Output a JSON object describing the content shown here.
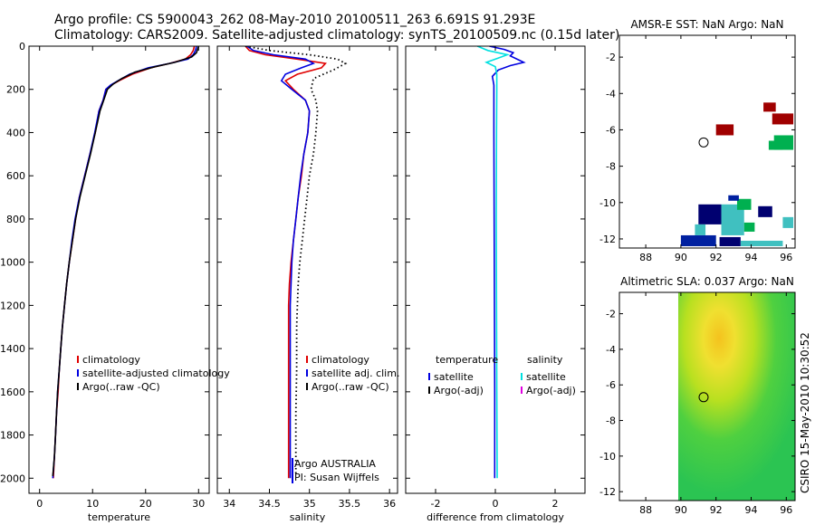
{
  "title_line1": "Argo profile: CS 5900043_262 08-May-2010 20100511_263 6.691S 91.293E",
  "title_line2": "Climatology: CARS2009. Satellite-adjusted climatology: synTS_20100509.nc (0.15d later)",
  "side_text": "CSIRO 15-May-2010 10:30:52",
  "colors": {
    "climatology": "#e00000",
    "satellite": "#0000e0",
    "argo": "#000000",
    "salinity_sat": "#00e0e0",
    "salinity_adj": "#e000e0"
  },
  "chart_data": [
    {
      "id": "temperature",
      "type": "line",
      "xlabel": "temperature",
      "xlim": [
        -2,
        32
      ],
      "xticks": [
        0,
        10,
        20,
        30
      ],
      "xtick_labels": [
        "0",
        "10",
        "20",
        "30"
      ],
      "ylim": [
        2070,
        0
      ],
      "yticks": [
        0,
        200,
        400,
        600,
        800,
        1000,
        1200,
        1400,
        1600,
        1800,
        2000
      ],
      "ytick_labels": [
        "0",
        "200",
        "400",
        "600",
        "800",
        "1000",
        "1200",
        "1400",
        "1600",
        "1800",
        "2000"
      ],
      "legend": {
        "position": "right-middle",
        "entries": [
          "climatology",
          "satellite-adjusted climatology",
          "Argo(..raw -QC)"
        ]
      },
      "series": [
        {
          "name": "climatology",
          "color": "#e00000",
          "points": [
            [
              29.2,
              0
            ],
            [
              29,
              20
            ],
            [
              28.5,
              40
            ],
            [
              27.5,
              60
            ],
            [
              24.5,
              80
            ],
            [
              21,
              100
            ],
            [
              17.5,
              130
            ],
            [
              15,
              160
            ],
            [
              13.5,
              180
            ],
            [
              12.5,
              200
            ],
            [
              12,
              250
            ],
            [
              11.2,
              300
            ],
            [
              10.5,
              400
            ],
            [
              9.5,
              500
            ],
            [
              8.5,
              600
            ],
            [
              7.5,
              700
            ],
            [
              6.8,
              800
            ],
            [
              6.2,
              900
            ],
            [
              5.6,
              1000
            ],
            [
              5.1,
              1100
            ],
            [
              4.7,
              1200
            ],
            [
              4.3,
              1300
            ],
            [
              4,
              1400
            ],
            [
              3.7,
              1500
            ],
            [
              3.5,
              1600
            ],
            [
              3.2,
              1700
            ],
            [
              3,
              1800
            ],
            [
              2.8,
              1900
            ],
            [
              2.6,
              2000
            ]
          ]
        },
        {
          "name": "satellite-adjusted climatology",
          "color": "#0000e0",
          "points": [
            [
              29.6,
              0
            ],
            [
              29.4,
              20
            ],
            [
              29,
              40
            ],
            [
              28,
              60
            ],
            [
              24.5,
              80
            ],
            [
              20.5,
              100
            ],
            [
              17,
              130
            ],
            [
              14.8,
              160
            ],
            [
              13.4,
              180
            ],
            [
              12.5,
              200
            ],
            [
              12,
              250
            ],
            [
              11.2,
              300
            ],
            [
              10.4,
              400
            ],
            [
              9.5,
              500
            ],
            [
              8.5,
              600
            ],
            [
              7.5,
              700
            ],
            [
              6.7,
              800
            ],
            [
              6.1,
              900
            ],
            [
              5.6,
              1000
            ],
            [
              5.1,
              1100
            ],
            [
              4.7,
              1200
            ],
            [
              4.3,
              1300
            ],
            [
              4,
              1400
            ],
            [
              3.7,
              1500
            ],
            [
              3.4,
              1600
            ],
            [
              3.2,
              1700
            ],
            [
              3,
              1800
            ],
            [
              2.8,
              1900
            ],
            [
              2.5,
              2000
            ]
          ]
        },
        {
          "name": "Argo(..raw -QC)",
          "color": "#000000",
          "points": [
            [
              30,
              0
            ],
            [
              29.8,
              15
            ],
            [
              29.6,
              30
            ],
            [
              28.7,
              50
            ],
            [
              25.5,
              75
            ],
            [
              21.8,
              95
            ],
            [
              18,
              120
            ],
            [
              15.5,
              150
            ],
            [
              13.9,
              175
            ],
            [
              12.8,
              200
            ],
            [
              12.1,
              250
            ],
            [
              11.4,
              300
            ],
            [
              10.5,
              400
            ],
            [
              9.6,
              500
            ],
            [
              8.6,
              600
            ],
            [
              7.6,
              700
            ],
            [
              6.8,
              800
            ],
            [
              6.2,
              900
            ],
            [
              5.6,
              1000
            ],
            [
              5.1,
              1100
            ],
            [
              4.7,
              1200
            ],
            [
              4.3,
              1300
            ],
            [
              4,
              1400
            ],
            [
              3.7,
              1500
            ],
            [
              3.4,
              1600
            ],
            [
              3.2,
              1700
            ],
            [
              3,
              1800
            ],
            [
              2.8,
              1900
            ],
            [
              2.5,
              1990
            ]
          ]
        }
      ]
    },
    {
      "id": "salinity",
      "type": "line",
      "xlabel": "salinity",
      "xlim": [
        33.85,
        36.1
      ],
      "xticks": [
        34,
        34.5,
        35,
        35.5,
        36
      ],
      "xtick_labels": [
        "34",
        "34.5",
        "35",
        "35.5",
        "36"
      ],
      "ylim": [
        2070,
        0
      ],
      "legend": {
        "position": "right-middle",
        "entries": [
          "climatology",
          "satellite adj. clim.",
          "Argo(..raw -QC)"
        ]
      },
      "annotations": [
        "Argo AUSTRALIA",
        "PI: Susan Wijffels"
      ],
      "series": [
        {
          "name": "climatology",
          "color": "#e00000",
          "points": [
            [
              34.2,
              0
            ],
            [
              34.25,
              20
            ],
            [
              34.45,
              40
            ],
            [
              34.85,
              60
            ],
            [
              35.2,
              80
            ],
            [
              35.15,
              100
            ],
            [
              34.85,
              130
            ],
            [
              34.7,
              160
            ],
            [
              34.8,
              200
            ],
            [
              34.95,
              250
            ],
            [
              35,
              300
            ],
            [
              34.98,
              400
            ],
            [
              34.93,
              500
            ],
            [
              34.9,
              600
            ],
            [
              34.86,
              700
            ],
            [
              34.83,
              800
            ],
            [
              34.8,
              900
            ],
            [
              34.77,
              1000
            ],
            [
              34.75,
              1100
            ],
            [
              34.74,
              1200
            ],
            [
              34.74,
              1300
            ],
            [
              34.74,
              1500
            ],
            [
              34.74,
              1700
            ],
            [
              34.74,
              2000
            ]
          ]
        },
        {
          "name": "satellite adj. clim.",
          "color": "#0000e0",
          "points": [
            [
              34.22,
              0
            ],
            [
              34.3,
              20
            ],
            [
              34.55,
              40
            ],
            [
              34.95,
              60
            ],
            [
              35.05,
              80
            ],
            [
              34.9,
              100
            ],
            [
              34.7,
              130
            ],
            [
              34.65,
              160
            ],
            [
              34.78,
              200
            ],
            [
              34.95,
              250
            ],
            [
              35,
              300
            ],
            [
              34.98,
              400
            ],
            [
              34.93,
              500
            ],
            [
              34.89,
              600
            ],
            [
              34.86,
              700
            ],
            [
              34.83,
              800
            ],
            [
              34.8,
              900
            ],
            [
              34.78,
              1000
            ],
            [
              34.77,
              1100
            ],
            [
              34.76,
              1200
            ],
            [
              34.76,
              1300
            ],
            [
              34.76,
              1500
            ],
            [
              34.76,
              1700
            ],
            [
              34.76,
              2000
            ]
          ]
        },
        {
          "name": "Argo(..raw -QC)",
          "color": "#000000",
          "dashed": true,
          "points": [
            [
              34.2,
              0
            ],
            [
              34.5,
              20
            ],
            [
              35,
              40
            ],
            [
              35.35,
              60
            ],
            [
              35.45,
              80
            ],
            [
              35.3,
              110
            ],
            [
              35.05,
              150
            ],
            [
              35.02,
              200
            ],
            [
              35.08,
              250
            ],
            [
              35.1,
              300
            ],
            [
              35.08,
              400
            ],
            [
              35.05,
              500
            ],
            [
              35.0,
              600
            ],
            [
              34.97,
              700
            ],
            [
              34.94,
              800
            ],
            [
              34.91,
              900
            ],
            [
              34.88,
              1000
            ],
            [
              34.86,
              1100
            ],
            [
              34.85,
              1200
            ],
            [
              34.84,
              1300
            ],
            [
              34.84,
              1500
            ],
            [
              34.83,
              1700
            ],
            [
              34.83,
              1990
            ]
          ]
        }
      ]
    },
    {
      "id": "difference",
      "type": "line",
      "xlabel": "difference from climatology",
      "xlim": [
        -3,
        3
      ],
      "xticks": [
        -2,
        0,
        2
      ],
      "xtick_labels": [
        "-2",
        "0",
        "2"
      ],
      "ylim": [
        2070,
        0
      ],
      "legend": {
        "position": "right-middle",
        "headers": [
          "temperature",
          "salinity"
        ],
        "entries": [
          "satellite",
          "Argo(-adj)",
          "satellite",
          "Argo(-adj)"
        ]
      },
      "series": [
        {
          "name": "temperature satellite",
          "color": "#0000e0",
          "points": [
            [
              -0.2,
              0
            ],
            [
              0.3,
              15
            ],
            [
              0.6,
              30
            ],
            [
              0.5,
              45
            ],
            [
              0.95,
              75
            ],
            [
              0.5,
              90
            ],
            [
              0.1,
              110
            ],
            [
              -0.1,
              140
            ],
            [
              -0.05,
              180
            ],
            [
              -0.05,
              250
            ],
            [
              -0.05,
              400
            ],
            [
              -0.04,
              800
            ],
            [
              -0.03,
              1200
            ],
            [
              -0.02,
              1600
            ],
            [
              -0.02,
              2000
            ]
          ]
        },
        {
          "name": "salinity satellite",
          "color": "#00e0e0",
          "points": [
            [
              -0.6,
              0
            ],
            [
              -0.25,
              20
            ],
            [
              0.4,
              40
            ],
            [
              0.1,
              55
            ],
            [
              -0.3,
              75
            ],
            [
              0,
              95
            ],
            [
              0.05,
              130
            ],
            [
              0.05,
              200
            ],
            [
              0.04,
              400
            ],
            [
              0.03,
              800
            ],
            [
              0.04,
              1200
            ],
            [
              0.05,
              1600
            ],
            [
              0.06,
              2000
            ]
          ]
        }
      ]
    },
    {
      "id": "sst_map",
      "type": "heatmap",
      "title": "AMSR-E SST: NaN Argo: NaN",
      "xlim": [
        86.5,
        96.5
      ],
      "ylim": [
        -12.5,
        -0.8
      ],
      "xticks": [
        88,
        90,
        92,
        94,
        96
      ],
      "xtick_labels": [
        "88",
        "90",
        "92",
        "94",
        "96"
      ],
      "yticks": [
        -2,
        -4,
        -6,
        -8,
        -10,
        -12
      ],
      "ytick_labels": [
        "-2",
        "-4",
        "-6",
        "-8",
        "-10",
        "-12"
      ],
      "argo_position": [
        91.293,
        -6.691
      ],
      "patches": [
        {
          "x0": 92,
          "x1": 93,
          "y0": -6.3,
          "y1": -5.7,
          "color": "#a00000"
        },
        {
          "x0": 94.7,
          "x1": 95.4,
          "y0": -5,
          "y1": -4.5,
          "color": "#a00000"
        },
        {
          "x0": 95.2,
          "x1": 96.4,
          "y0": -5.7,
          "y1": -5.1,
          "color": "#a00000"
        },
        {
          "x0": 95.3,
          "x1": 96.4,
          "y0": -7.1,
          "y1": -6.3,
          "color": "#00b050"
        },
        {
          "x0": 95,
          "x1": 95.8,
          "y0": -7.1,
          "y1": -6.6,
          "color": "#00b050"
        },
        {
          "x0": 91,
          "x1": 92.3,
          "y0": -11.2,
          "y1": -10.1,
          "color": "#000070"
        },
        {
          "x0": 92.3,
          "x1": 93.6,
          "y0": -11.8,
          "y1": -10.1,
          "color": "#40c0c0"
        },
        {
          "x0": 93.2,
          "x1": 94,
          "y0": -10.4,
          "y1": -9.8,
          "color": "#00b050"
        },
        {
          "x0": 94.4,
          "x1": 95.2,
          "y0": -10.8,
          "y1": -10.2,
          "color": "#000070"
        },
        {
          "x0": 90,
          "x1": 92,
          "y0": -12.4,
          "y1": -11.8,
          "color": "#0020a0"
        },
        {
          "x0": 90.8,
          "x1": 91.4,
          "y0": -11.8,
          "y1": -11.2,
          "color": "#40c0c0"
        },
        {
          "x0": 92.2,
          "x1": 93.4,
          "y0": -12.4,
          "y1": -11.9,
          "color": "#000070"
        },
        {
          "x0": 93.4,
          "x1": 95.8,
          "y0": -12.4,
          "y1": -12.1,
          "color": "#40c0c0"
        },
        {
          "x0": 95.8,
          "x1": 96.4,
          "y0": -11.4,
          "y1": -10.8,
          "color": "#40c0c0"
        },
        {
          "x0": 93.6,
          "x1": 94.2,
          "y0": -11.6,
          "y1": -11.1,
          "color": "#00b050"
        },
        {
          "x0": 92.7,
          "x1": 93.3,
          "y0": -9.9,
          "y1": -9.6,
          "color": "#0020a0"
        }
      ]
    },
    {
      "id": "sla_map",
      "type": "heatmap",
      "title": "Altimetric SLA: 0.037 Argo: NaN",
      "xlim": [
        86.5,
        96.5
      ],
      "ylim": [
        -12.5,
        -0.8
      ],
      "xticks": [
        88,
        90,
        92,
        94,
        96
      ],
      "xtick_labels": [
        "88",
        "90",
        "92",
        "94",
        "96"
      ],
      "yticks": [
        -2,
        -4,
        -6,
        -8,
        -10,
        -12
      ],
      "ytick_labels": [
        "-2",
        "-4",
        "-6",
        "-8",
        "-10",
        "-12"
      ],
      "data_extent": [
        89.85,
        96.5
      ],
      "argo_position": [
        91.293,
        -6.691
      ]
    }
  ]
}
